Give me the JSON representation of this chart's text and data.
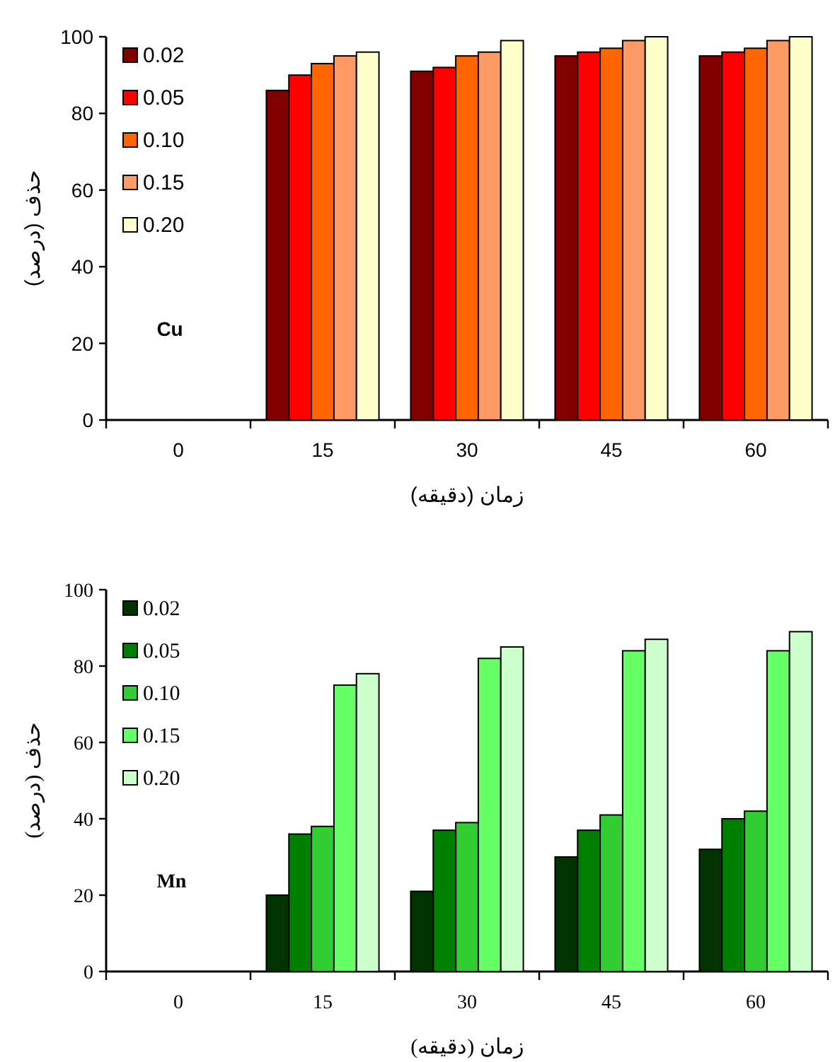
{
  "chart_data": [
    {
      "type": "bar",
      "xlabel": "زمان (دقیقه)",
      "ylabel": "حذف (درصد)",
      "annotations": [
        "Cu"
      ],
      "categories": [
        "0",
        "15",
        "30",
        "45",
        "60"
      ],
      "ylim": [
        0,
        100
      ],
      "yticks": [
        0,
        20,
        40,
        60,
        80,
        100
      ],
      "grid": false,
      "legend": "top left",
      "series": [
        {
          "name": "0.02",
          "color": "#800000",
          "values": [
            0,
            86,
            91,
            95,
            95
          ]
        },
        {
          "name": "0.05",
          "color": "#ff0000",
          "values": [
            0,
            90,
            92,
            96,
            96
          ]
        },
        {
          "name": "0.10",
          "color": "#ff6600",
          "values": [
            0,
            93,
            95,
            97,
            97
          ]
        },
        {
          "name": "0.15",
          "color": "#ff9966",
          "values": [
            0,
            95,
            96,
            99,
            99
          ]
        },
        {
          "name": "0.20",
          "color": "#ffffcc",
          "values": [
            0,
            96,
            99,
            100,
            100
          ]
        }
      ]
    },
    {
      "type": "bar",
      "xlabel": "زمان (دقیقه)",
      "ylabel": "حذف (درصد)",
      "annotations": [
        "Mn"
      ],
      "categories": [
        "0",
        "15",
        "30",
        "45",
        "60"
      ],
      "ylim": [
        0,
        100
      ],
      "yticks": [
        0,
        20,
        40,
        60,
        80,
        100
      ],
      "grid": false,
      "legend": "top left",
      "series": [
        {
          "name": "0.02",
          "color": "#003300",
          "values": [
            0,
            20,
            21,
            30,
            32
          ]
        },
        {
          "name": "0.05",
          "color": "#008000",
          "values": [
            0,
            36,
            37,
            37,
            40
          ]
        },
        {
          "name": "0.10",
          "color": "#33cc33",
          "values": [
            0,
            38,
            39,
            41,
            42
          ]
        },
        {
          "name": "0.15",
          "color": "#66ff66",
          "values": [
            0,
            75,
            82,
            84,
            84
          ]
        },
        {
          "name": "0.20",
          "color": "#ccffcc",
          "values": [
            0,
            78,
            85,
            87,
            89
          ]
        }
      ]
    }
  ]
}
